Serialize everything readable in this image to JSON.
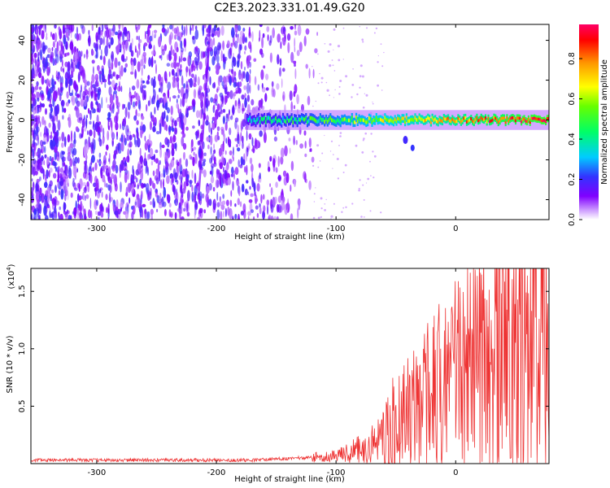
{
  "title": "C2E3.2023.331.01.49.G20",
  "chart_data": [
    {
      "type": "heatmap",
      "xlabel": "Height of straight line (km)",
      "ylabel": "Frequency (Hz)",
      "xlim": [
        -355,
        78
      ],
      "ylim": [
        -50,
        48
      ],
      "xticks": [
        -300,
        -200,
        -100,
        0
      ],
      "yticks": [
        -40,
        -20,
        0,
        20,
        40
      ],
      "colorbar": {
        "label": "Normalized spectral amplitude",
        "range": [
          0.0,
          0.97
        ],
        "ticks": [
          0.0,
          0.2,
          0.4,
          0.6,
          0.8
        ],
        "colormap": [
          "#ffffff",
          "#8000ff",
          "#3333ff",
          "#00ccff",
          "#00ff66",
          "#66ff00",
          "#ffff00",
          "#ff9900",
          "#ff0000",
          "#ff0066"
        ]
      },
      "features": [
        {
          "name": "broadband noise",
          "x_range": [
            -355,
            -120
          ],
          "level": 0.1
        },
        {
          "name": "signal line",
          "x_range": [
            -175,
            78
          ],
          "frequency": 0,
          "level_range": [
            0.3,
            0.95
          ]
        }
      ]
    },
    {
      "type": "line",
      "xlabel": "Height of straight line (km)",
      "ylabel": "SNR (10 * v/v)",
      "y_scale_label": "(x10",
      "y_scale_exp": "4",
      "y_scale": 10000,
      "xlim": [
        -355,
        78
      ],
      "ylim": [
        0,
        1.7
      ],
      "xticks": [
        -300,
        -200,
        -100,
        0
      ],
      "yticks": [
        0.5,
        1.0,
        1.5
      ],
      "series": [
        {
          "color": "#ee3333",
          "x": [
            -355,
            -300,
            -250,
            -200,
            -170,
            -150,
            -130,
            -110,
            -100,
            -90,
            -80,
            -70,
            -60,
            -50,
            -40,
            -30,
            -20,
            -10,
            0,
            10,
            20,
            30,
            40,
            50,
            60,
            70,
            78
          ],
          "y": [
            0.03,
            0.03,
            0.03,
            0.03,
            0.03,
            0.04,
            0.05,
            0.06,
            0.07,
            0.09,
            0.12,
            0.17,
            0.24,
            0.32,
            0.41,
            0.5,
            0.6,
            0.69,
            0.77,
            0.85,
            0.92,
            0.98,
            1.03,
            1.08,
            1.12,
            1.15,
            1.18
          ]
        }
      ]
    }
  ]
}
